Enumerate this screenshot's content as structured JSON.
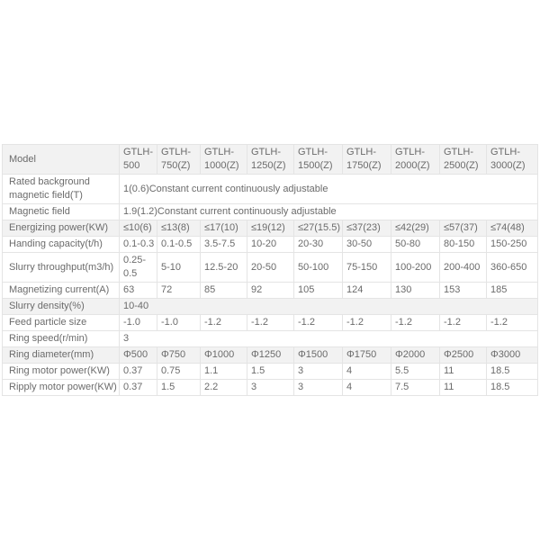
{
  "page": {
    "background_color": "#ffffff",
    "text_color": "#6b6b6b",
    "stripe_color": "#f2f2f2",
    "border_color": "#e4e4e4"
  },
  "table": {
    "models": [
      "GTLH-500",
      "GTLH-750(Z)",
      "GTLH-1000(Z)",
      "GTLH-1250(Z)",
      "GTLH-1500(Z)",
      "GTLH-1750(Z)",
      "GTLH-2000(Z)",
      "GTLH-2500(Z)",
      "GTLH-3000(Z)"
    ],
    "rows": [
      {
        "label": "Model",
        "shaded": true,
        "cells": [
          "GTLH-500",
          "GTLH-750(Z)",
          "GTLH-1000(Z)",
          "GTLH-1250(Z)",
          "GTLH-1500(Z)",
          "GTLH-1750(Z)",
          "GTLH-2000(Z)",
          "GTLH-2500(Z)",
          "GTLH-3000(Z)"
        ]
      },
      {
        "label": "Rated background magnetic field(T)",
        "shaded": false,
        "span": "1(0.6)Constant current continuously adjustable"
      },
      {
        "label": "Magnetic field",
        "shaded": false,
        "span": "1.9(1.2)Constant current continuously adjustable"
      },
      {
        "label": "Energizing power(KW)",
        "shaded": true,
        "cells": [
          "≤10(6)",
          "≤13(8)",
          "≤17(10)",
          "≤19(12)",
          "≤27(15.5)",
          "≤37(23)",
          "≤42(29)",
          "≤57(37)",
          "≤74(48)"
        ]
      },
      {
        "label": "Handing capacity(t/h)",
        "shaded": false,
        "cells": [
          "0.1-0.3",
          "0.1-0.5",
          "3.5-7.5",
          "10-20",
          "20-30",
          "30-50",
          "50-80",
          "80-150",
          "150-250"
        ]
      },
      {
        "label": "Slurry throughput(m3/h)",
        "shaded": false,
        "cells": [
          "0.25-0.5",
          "5-10",
          "12.5-20",
          "20-50",
          "50-100",
          "75-150",
          "100-200",
          "200-400",
          "360-650"
        ]
      },
      {
        "label": "Magnetizing current(A)",
        "shaded": false,
        "cells": [
          "63",
          "72",
          "85",
          "92",
          "105",
          "124",
          "130",
          "153",
          "185"
        ]
      },
      {
        "label": "Slurry density(%)",
        "shaded": true,
        "span": "10-40"
      },
      {
        "label": "Feed particle size",
        "shaded": false,
        "cells": [
          "-1.0",
          "-1.0",
          "-1.2",
          "-1.2",
          "-1.2",
          "-1.2",
          "-1.2",
          "-1.2",
          "-1.2"
        ]
      },
      {
        "label": "Ring speed(r/min)",
        "shaded": false,
        "span": "3"
      },
      {
        "label": "Ring diameter(mm)",
        "shaded": true,
        "cells": [
          "Φ500",
          "Φ750",
          "Φ1000",
          "Φ1250",
          "Φ1500",
          "Φ1750",
          "Φ2000",
          "Φ2500",
          "Φ3000"
        ]
      },
      {
        "label": "Ring motor power(KW)",
        "shaded": false,
        "cells": [
          "0.37",
          "0.75",
          "1.1",
          "1.5",
          "3",
          "4",
          "5.5",
          "11",
          "18.5"
        ]
      },
      {
        "label": "Ripply motor power(KW)",
        "shaded": false,
        "cells": [
          "0.37",
          "1.5",
          "2.2",
          "3",
          "3",
          "4",
          "7.5",
          "11",
          "18.5"
        ]
      }
    ]
  }
}
